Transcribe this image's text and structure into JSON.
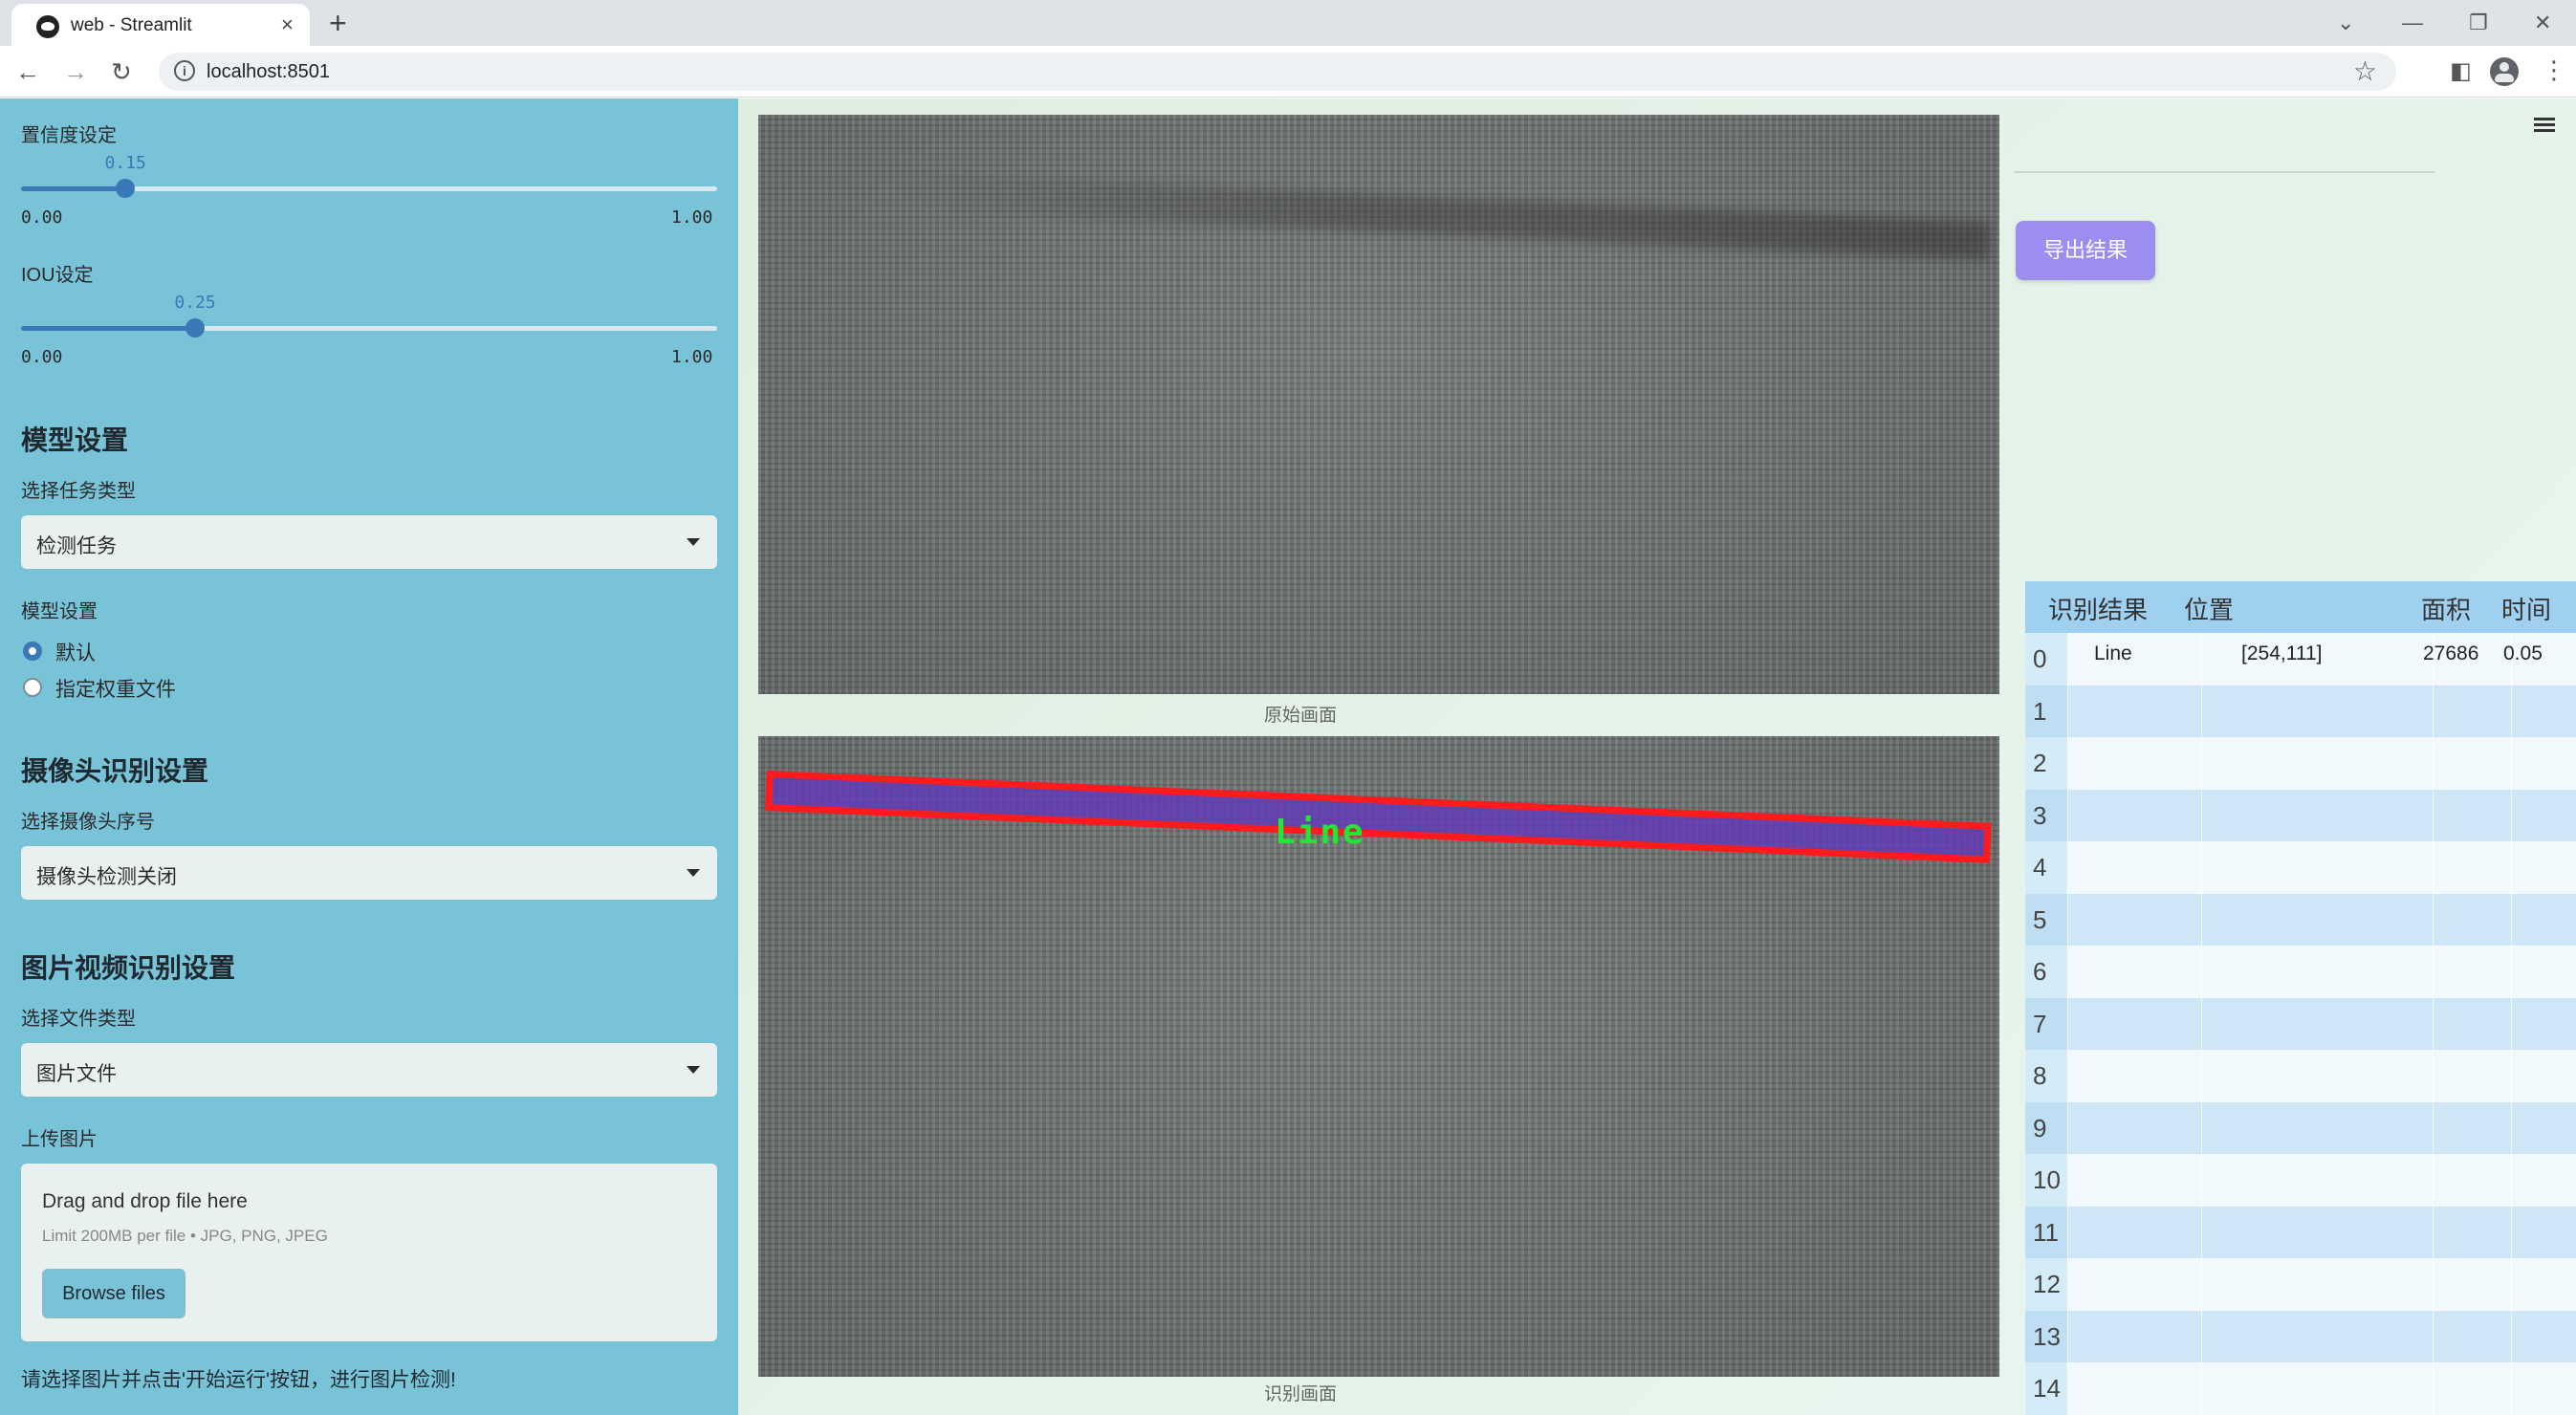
{
  "browser": {
    "tab_title": "web - Streamlit",
    "url": "localhost:8501",
    "new_tab": "+",
    "tab_close": "×"
  },
  "icons": {
    "back": "back-arrow-icon",
    "forward": "forward-arrow-icon",
    "reload": "reload-icon",
    "star": "bookmark-star-icon",
    "menu": "hamburger-menu-icon"
  },
  "sidebar": {
    "confidence": {
      "label": "置信度设定",
      "value": "0.15",
      "min": "0.00",
      "max": "1.00",
      "fraction": 0.15
    },
    "iou": {
      "label": "IOU设定",
      "value": "0.25",
      "min": "0.00",
      "max": "1.00",
      "fraction": 0.25
    },
    "model_heading": "模型设置",
    "task_type_label": "选择任务类型",
    "task_type_value": "检测任务",
    "model_settings_label": "模型设置",
    "model_options": [
      "默认",
      "指定权重文件"
    ],
    "camera_heading": "摄像头识别设置",
    "camera_label": "选择摄像头序号",
    "camera_value": "摄像头检测关闭",
    "media_heading": "图片视频识别设置",
    "file_type_label": "选择文件类型",
    "file_type_value": "图片文件",
    "upload_label": "上传图片",
    "upload_title": "Drag and drop file here",
    "upload_limit": "Limit 200MB per file • JPG, PNG, JPEG",
    "browse_button": "Browse files",
    "hint": "请选择图片并点击'开始运行'按钮，进行图片检测!"
  },
  "main": {
    "original_caption": "原始画面",
    "result_caption": "识别画面",
    "detection_label": "Line",
    "export_button": "导出结果"
  },
  "table": {
    "headers": [
      "识别结果",
      "位置",
      "面积",
      "时间"
    ],
    "rows": [
      {
        "index": "0",
        "result": "Line",
        "position": "[254,111]",
        "area": "27686",
        "time": "0.05"
      },
      {
        "index": "1"
      },
      {
        "index": "2"
      },
      {
        "index": "3"
      },
      {
        "index": "4"
      },
      {
        "index": "5"
      },
      {
        "index": "6"
      },
      {
        "index": "7"
      },
      {
        "index": "8"
      },
      {
        "index": "9"
      },
      {
        "index": "10"
      },
      {
        "index": "11"
      },
      {
        "index": "12"
      },
      {
        "index": "13"
      },
      {
        "index": "14"
      }
    ]
  },
  "colors": {
    "sidebar_bg": "#79c3d9",
    "accent": "#3b78b8",
    "export_button": "#9b8ef0",
    "detection_box": "#ff1b1b",
    "detection_fill": "#623cb4",
    "detection_text": "#22e635"
  }
}
